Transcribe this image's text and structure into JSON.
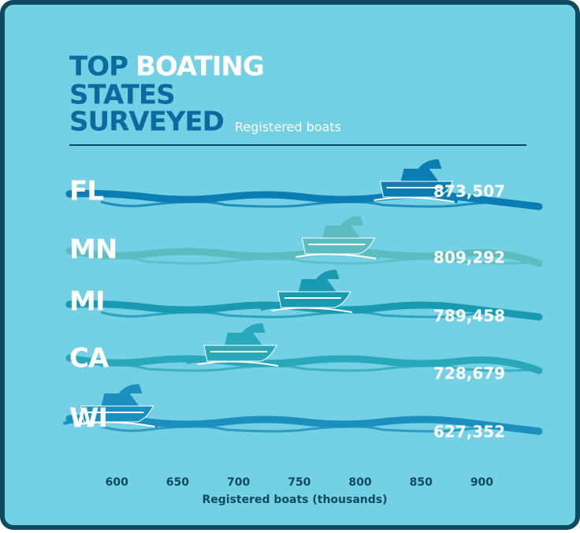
{
  "chart_data": {
    "type": "boat",
    "title": [
      "TOP",
      "BOATING",
      "STATES",
      "SURVEYED"
    ],
    "subtitle": "Registered boats",
    "categories": [
      "FL",
      "MN",
      "MI",
      "CA",
      "WI"
    ],
    "values": [
      873.507,
      809.292,
      789.458,
      728.679,
      627.352
    ],
    "value_labels": [
      "873,507",
      "809,292",
      "789,458",
      "728,679",
      "627,352"
    ],
    "colors": [
      "#0a7db3",
      "#5cbcbf",
      "#189ab2",
      "#2aa8bb",
      "#1b8fbd"
    ],
    "xlabel": "Registered boats (thousands)",
    "xlim": [
      561,
      947
    ],
    "xticks": [
      600,
      650,
      700,
      750,
      800,
      850,
      900
    ]
  }
}
